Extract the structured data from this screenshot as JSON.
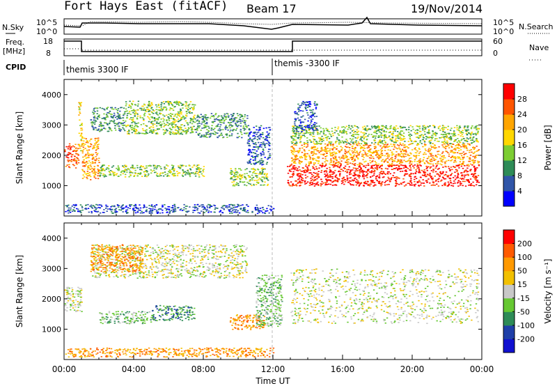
{
  "header": {
    "radar": "Fort Hays East (fitACF)",
    "beam": "Beam 17",
    "date": "19/Nov/2014"
  },
  "top_panels": {
    "nsky_label": "N.Sky",
    "nsearch_label": "N.Search",
    "noise_ticks": [
      "10^5",
      "10^0"
    ],
    "freq_label": "Freq.",
    "freq_unit": "[MHz]",
    "freq_ticks": [
      "18",
      "8"
    ],
    "nave_label": "Nave",
    "nave_ticks": [
      "60",
      "0"
    ],
    "cpid_label": "CPID",
    "cpid_segments": [
      {
        "label": "themis 3300 IF",
        "start_h": 0
      },
      {
        "label": "themis -3300 IF",
        "start_h": 12
      }
    ]
  },
  "colors": {
    "power_scale": [
      "#0000ff",
      "#3055a8",
      "#2e8b57",
      "#7ccd32",
      "#ffd700",
      "#ffa500",
      "#ff5500",
      "#ff0000"
    ],
    "velocity_scale": [
      "#ff0000",
      "#ff5a00",
      "#ff9900",
      "#f2c000",
      "#c8c8c8",
      "#66c832",
      "#2e8b57",
      "#1f3fa8",
      "#1010d0"
    ],
    "frame": "#000000",
    "gridline": "#bbbbbb"
  },
  "chart_data": [
    {
      "type": "heatmap",
      "title": "",
      "ylabel": "Slant Range [km]",
      "ylim": [
        0,
        4500
      ],
      "y_ticks": [
        1000,
        2000,
        3000,
        4000
      ],
      "x_ticks": [
        "00:00",
        "04:00",
        "08:00",
        "12:00",
        "16:00",
        "20:00",
        "00:00"
      ],
      "xlim_hours": [
        0,
        24
      ],
      "colorbar_label": "Power [dB]",
      "colorbar_ticks": [
        "4",
        "8",
        "12",
        "16",
        "20",
        "24",
        "28"
      ],
      "scatter_regions": [
        {
          "t0": 0.0,
          "t1": 0.8,
          "r0": 1600,
          "r1": 2400,
          "level": 6
        },
        {
          "t0": 0.8,
          "t1": 1.0,
          "r0": 2000,
          "r1": 3800,
          "level": 4
        },
        {
          "t0": 1.0,
          "t1": 2.0,
          "r0": 1200,
          "r1": 2600,
          "level": 5
        },
        {
          "t0": 1.5,
          "t1": 3.5,
          "r0": 2800,
          "r1": 3600,
          "level": 2
        },
        {
          "t0": 3.5,
          "t1": 7.5,
          "r0": 2700,
          "r1": 3800,
          "level": 3
        },
        {
          "t0": 7.5,
          "t1": 10.5,
          "r0": 2600,
          "r1": 3400,
          "level": 2
        },
        {
          "t0": 2.0,
          "t1": 8.0,
          "r0": 1300,
          "r1": 1700,
          "level": 3
        },
        {
          "t0": 9.5,
          "t1": 11.7,
          "r0": 1000,
          "r1": 1600,
          "level": 3
        },
        {
          "t0": 10.5,
          "t1": 11.8,
          "r0": 1700,
          "r1": 3000,
          "level": 1
        },
        {
          "t0": 12.8,
          "t1": 23.8,
          "r0": 1000,
          "r1": 1700,
          "level": 7
        },
        {
          "t0": 13.0,
          "t1": 23.8,
          "r0": 1700,
          "r1": 2400,
          "level": 5
        },
        {
          "t0": 13.0,
          "t1": 23.8,
          "r0": 2400,
          "r1": 3000,
          "level": 3
        },
        {
          "t0": 13.2,
          "t1": 14.5,
          "r0": 2800,
          "r1": 3800,
          "level": 1
        },
        {
          "t0": 0.0,
          "t1": 12.0,
          "r0": 100,
          "r1": 400,
          "level": 1
        }
      ]
    },
    {
      "type": "heatmap",
      "title": "",
      "xlabel": "Time UT",
      "ylabel": "Slant Range [km]",
      "ylim": [
        0,
        4500
      ],
      "y_ticks": [
        1000,
        2000,
        3000,
        4000
      ],
      "x_ticks": [
        "00:00",
        "04:00",
        "08:00",
        "12:00",
        "16:00",
        "20:00",
        "00:00"
      ],
      "xlim_hours": [
        0,
        24
      ],
      "colorbar_label": "Velocity [m s⁻¹]",
      "colorbar_ticks": [
        "200",
        "100",
        "50",
        "15",
        "-15",
        "-50",
        "-100",
        "-200"
      ],
      "scatter_regions": [
        {
          "t0": 0.0,
          "t1": 1.0,
          "r0": 1600,
          "r1": 2400,
          "level": 4
        },
        {
          "t0": 1.5,
          "t1": 10.5,
          "r0": 2700,
          "r1": 3800,
          "level": 4
        },
        {
          "t0": 1.5,
          "t1": 4.5,
          "r0": 2900,
          "r1": 3800,
          "level": 2
        },
        {
          "t0": 2.0,
          "t1": 5.0,
          "r0": 1200,
          "r1": 1600,
          "level": 5
        },
        {
          "t0": 5.0,
          "t1": 7.5,
          "r0": 1300,
          "r1": 1800,
          "level": 6
        },
        {
          "t0": 9.5,
          "t1": 11.5,
          "r0": 1000,
          "r1": 1500,
          "level": 2
        },
        {
          "t0": 11.0,
          "t1": 12.5,
          "r0": 1100,
          "r1": 2800,
          "level": 5
        },
        {
          "t0": 13.0,
          "t1": 23.8,
          "r0": 1200,
          "r1": 3000,
          "level": 4
        },
        {
          "t0": 0.0,
          "t1": 12.0,
          "r0": 100,
          "r1": 400,
          "level": 2
        }
      ]
    }
  ]
}
